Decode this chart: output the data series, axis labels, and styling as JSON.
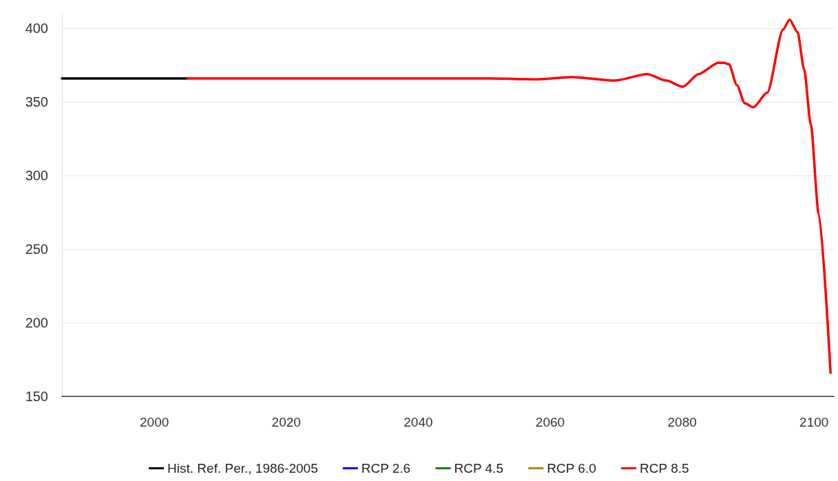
{
  "chart_data": {
    "type": "line",
    "xlim": [
      1986,
      2103
    ],
    "xticks": [
      2000,
      2020,
      2040,
      2060,
      2080,
      2100
    ],
    "ylim": [
      150,
      410
    ],
    "yticks": [
      150,
      200,
      250,
      300,
      350,
      400
    ],
    "grid": "y",
    "legend": "bottom",
    "marker": "none",
    "line_style": "solid",
    "series": [
      {
        "name": "Hist. Ref. Per., 1986-2005",
        "color": "#000000",
        "x": [
          1986,
          2005
        ],
        "values": [
          366,
          366
        ]
      },
      {
        "name": "RCP 2.6",
        "color": "#0000ff"
      },
      {
        "name": "RCP 4.5",
        "color": "#1a7a1a"
      },
      {
        "name": "RCP 6.0",
        "color": "#b8860b"
      },
      {
        "name": "RCP 8.5",
        "color": "#ff0000",
        "x": [
          2005,
          2020,
          2040,
          2050.9,
          2058.3,
          2063.2,
          2069.8,
          2074.7,
          2077.6,
          2080.1,
          2082.5,
          2085.5,
          2086.3,
          2087.1,
          2088.3,
          2089.5,
          2090.8,
          2092.9,
          2095.3,
          2096.3,
          2097.5,
          2098.5,
          2099.5,
          2100.7,
          2102.5
        ],
        "values": [
          366,
          366,
          366,
          366,
          365.5,
          367,
          364.6,
          369,
          364.6,
          360.4,
          369,
          376.7,
          376.7,
          375.7,
          361.5,
          349.2,
          346.5,
          356.4,
          399.3,
          406,
          397.5,
          372,
          335,
          274,
          166
        ]
      }
    ]
  }
}
